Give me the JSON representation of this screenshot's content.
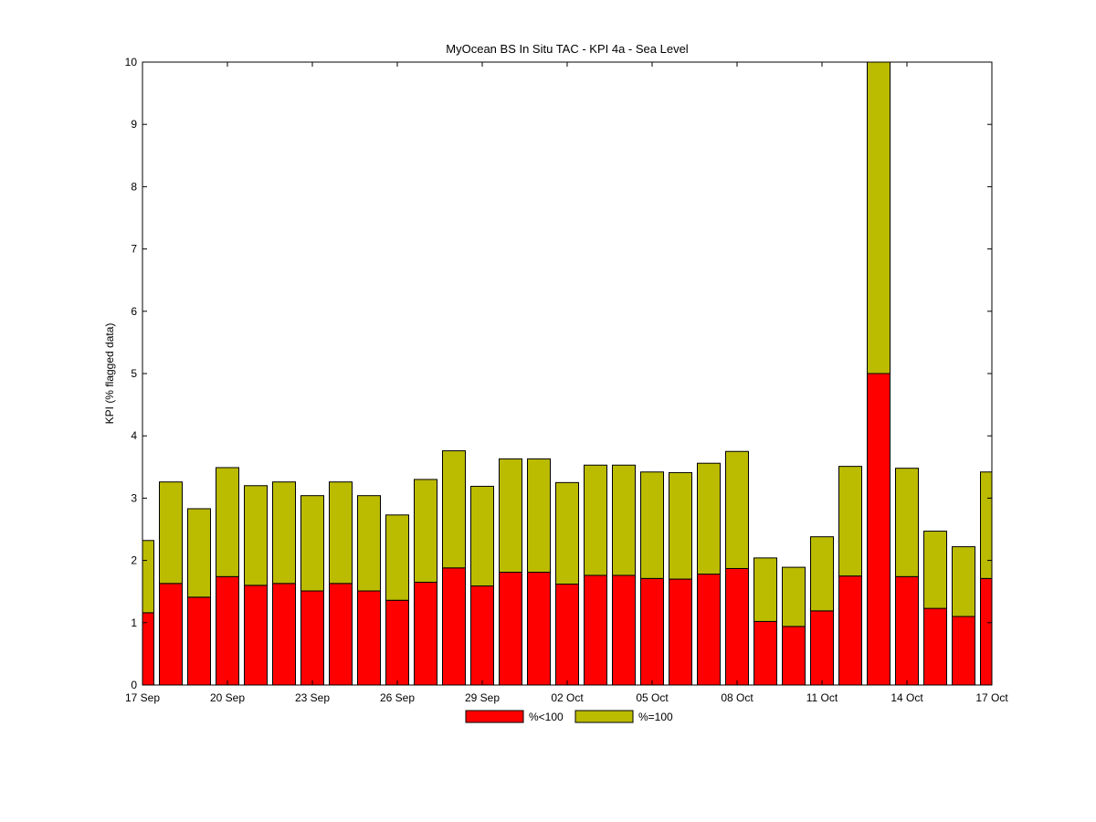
{
  "chart_data": {
    "type": "bar",
    "stacked": true,
    "title": "MyOcean  BS In Situ TAC - KPI 4a - Sea Level",
    "xlabel": "",
    "ylabel": "KPI (% flagged data)",
    "ylim": [
      0,
      10
    ],
    "yticks": [
      0,
      1,
      2,
      3,
      4,
      5,
      6,
      7,
      8,
      9,
      10
    ],
    "xlim": [
      "2012-09-17",
      "2012-10-17"
    ],
    "xtick_labels": [
      "17 Sep",
      "20 Sep",
      "23 Sep",
      "26 Sep",
      "29 Sep",
      "02 Oct",
      "05 Oct",
      "08 Oct",
      "11 Oct",
      "14 Oct",
      "17 Oct"
    ],
    "grid": false,
    "legend_position": "bottom-center",
    "categories": [
      "17 Sep",
      "18 Sep",
      "19 Sep",
      "20 Sep",
      "21 Sep",
      "22 Sep",
      "23 Sep",
      "24 Sep",
      "25 Sep",
      "26 Sep",
      "27 Sep",
      "28 Sep",
      "29 Sep",
      "30 Sep",
      "01 Oct",
      "02 Oct",
      "03 Oct",
      "04 Oct",
      "05 Oct",
      "06 Oct",
      "07 Oct",
      "08 Oct",
      "09 Oct",
      "10 Oct",
      "11 Oct",
      "12 Oct",
      "13 Oct",
      "14 Oct",
      "15 Oct",
      "16 Oct",
      "17 Oct"
    ],
    "series": [
      {
        "name": "%<100",
        "color": "#ff0000",
        "values": [
          1.16,
          1.63,
          1.41,
          1.74,
          1.6,
          1.63,
          1.51,
          1.63,
          1.51,
          1.36,
          1.65,
          1.88,
          1.59,
          1.81,
          1.81,
          1.62,
          1.76,
          1.76,
          1.71,
          1.7,
          1.78,
          1.87,
          1.02,
          0.94,
          1.19,
          1.75,
          5.0,
          1.74,
          1.23,
          1.1,
          1.71
        ]
      },
      {
        "name": "%=100",
        "color": "#bbbb00",
        "values": [
          1.16,
          1.63,
          1.42,
          1.75,
          1.6,
          1.63,
          1.53,
          1.63,
          1.53,
          1.37,
          1.65,
          1.88,
          1.6,
          1.82,
          1.82,
          1.63,
          1.77,
          1.77,
          1.71,
          1.71,
          1.78,
          1.88,
          1.02,
          0.95,
          1.19,
          1.76,
          5.0,
          1.74,
          1.24,
          1.12,
          1.71
        ]
      }
    ]
  }
}
